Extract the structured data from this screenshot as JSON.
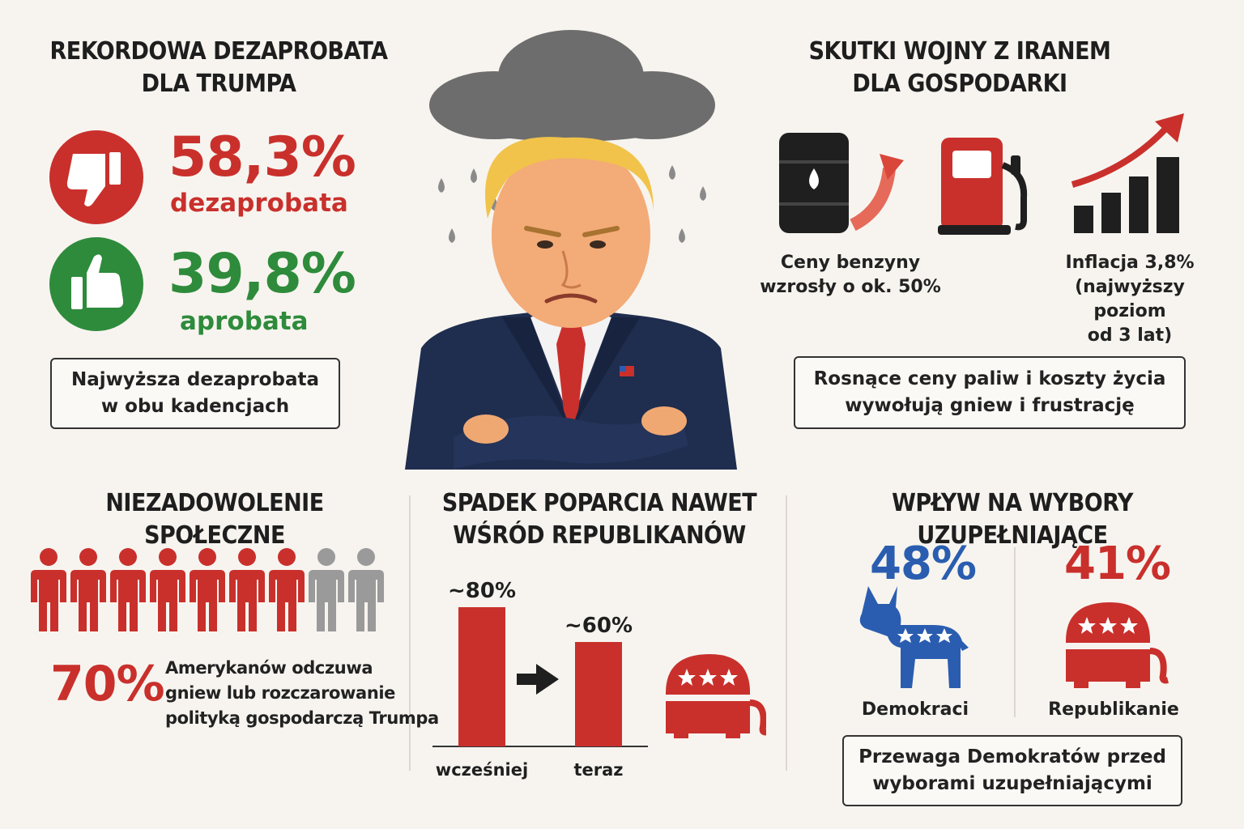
{
  "left_top": {
    "title_l1": "REKORDOWA DEZAPROBATA",
    "title_l2": "DLA TRUMPA",
    "disapproval_value": "58,3%",
    "disapproval_label": "dezaprobata",
    "approval_value": "39,8%",
    "approval_label": "aprobata",
    "note_l1": "Najwyższa dezaprobata",
    "note_l2": "w obu kadencjach",
    "icons": [
      "thumbs-down-icon",
      "thumbs-up-icon"
    ]
  },
  "right_top": {
    "title_l1": "SKUTKI WOJNY Z IRANEM",
    "title_l2": "DLA GOSPODARKI",
    "fuel_l1": "Ceny benzyny",
    "fuel_l2": "wzrosły o ok. 50%",
    "inflation_l1": "Inflacja 3,8%",
    "inflation_l2": "(najwyższy poziom",
    "inflation_l3": "od 3 lat)",
    "note_l1": "Rosnące ceny paliw i koszty życia",
    "note_l2": "wywołują gniew i frustrację",
    "icons": [
      "oil-barrel-icon",
      "fuel-pump-icon",
      "rising-bars-icon"
    ]
  },
  "bottom_left": {
    "title": "NIEZADOWOLENIE SPOŁECZNE",
    "people": {
      "highlighted": 7,
      "total": 9
    },
    "value": "70%",
    "text_l1": "Amerykanów odczuwa",
    "text_l2": "gniew lub rozczarowanie",
    "text_l3": "polityką gospodarczą Trumpa"
  },
  "bottom_mid": {
    "title_l1": "SPADEK POPARCIA NAWET",
    "title_l2": "WŚRÓD REPUBLIKANÓW",
    "chart_data": {
      "type": "bar",
      "categories": [
        "wcześniej",
        "teraz"
      ],
      "values": [
        80,
        60
      ],
      "data_labels": [
        "~80%",
        "~60%"
      ],
      "ylim": [
        0,
        80
      ],
      "xlabel": "",
      "ylabel": "",
      "grid": false
    }
  },
  "bottom_right": {
    "title": "WPŁYW NA WYBORY UZUPEŁNIAJĄCE",
    "dem_value": "48%",
    "dem_label": "Demokraci",
    "rep_value": "41%",
    "rep_label": "Republikanie",
    "note_l1": "Przewaga Demokratów przed",
    "note_l2": "wyborami uzupełniającymi",
    "icons": [
      "donkey-icon",
      "elephant-icon"
    ]
  },
  "colors": {
    "red": "#c9302c",
    "green": "#2e8b3b",
    "blue": "#2a5db0",
    "grey": "#9a9a9a",
    "navy": "#1f2d4e"
  }
}
